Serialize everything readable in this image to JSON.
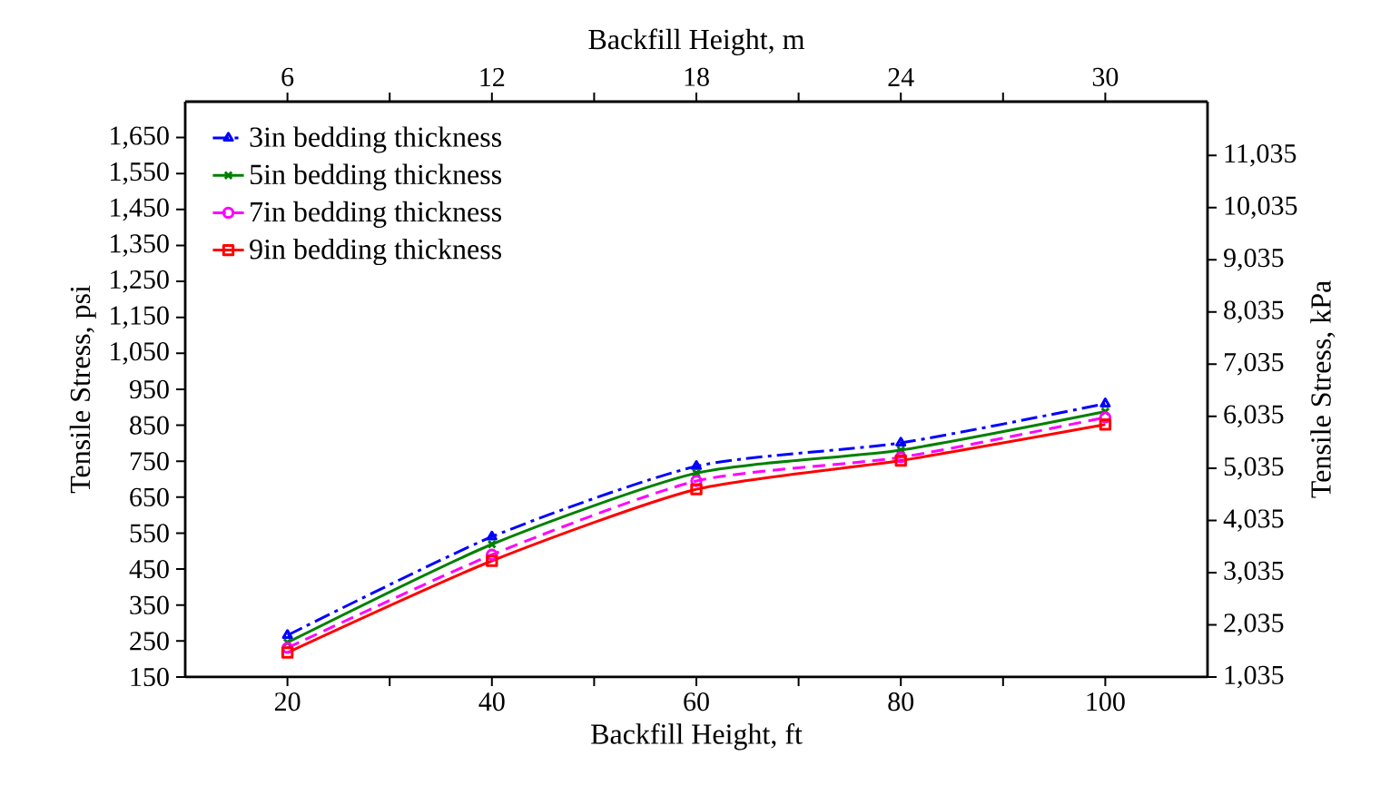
{
  "chart_data": {
    "type": "line",
    "xlabel": "Backfill Height, ft",
    "x2label": "Backfill Height, m",
    "ylabel": "Tensile Stress, psi",
    "y2label": "Tensile Stress, kPa",
    "x": [
      20,
      40,
      60,
      80,
      100
    ],
    "xlim": [
      10,
      110
    ],
    "xticks": [
      20,
      40,
      60,
      80,
      100
    ],
    "x2lim": [
      3,
      33
    ],
    "x2ticks": [
      6,
      12,
      18,
      24,
      30
    ],
    "ylim": [
      150,
      1750
    ],
    "yticks": [
      150,
      250,
      350,
      450,
      550,
      650,
      750,
      850,
      950,
      {
        "value": 1050,
        "label": "1,050"
      },
      {
        "value": 1150,
        "label": "1,150"
      },
      {
        "value": 1250,
        "label": "1,250"
      },
      {
        "value": 1350,
        "label": "1,350"
      },
      {
        "value": 1450,
        "label": "1,450"
      },
      {
        "value": 1550,
        "label": "1,550"
      },
      {
        "value": 1650,
        "label": "1,650"
      }
    ],
    "y2lim": [
      1035,
      12067
    ],
    "y2ticks": [
      {
        "value": 1035,
        "label": "1,035"
      },
      {
        "value": 2035,
        "label": "2,035"
      },
      {
        "value": 3035,
        "label": "3,035"
      },
      {
        "value": 4035,
        "label": "4,035"
      },
      {
        "value": 5035,
        "label": "5,035"
      },
      {
        "value": 6035,
        "label": "6,035"
      },
      {
        "value": 7035,
        "label": "7,035"
      },
      {
        "value": 8035,
        "label": "8,035"
      },
      {
        "value": 9035,
        "label": "9,035"
      },
      {
        "value": 10035,
        "label": "10,035"
      },
      {
        "value": 11035,
        "label": "11,035"
      }
    ],
    "legend": "top left",
    "series": [
      {
        "name": "3in bedding thickness",
        "color": "#0000ff",
        "marker": "triangle",
        "line_style": "dashdot",
        "values": [
          266,
          540,
          736,
          801,
          910
        ]
      },
      {
        "name": "5in bedding thickness",
        "color": "#008000",
        "marker": "cross",
        "line_style": "solid",
        "values": [
          246,
          519,
          717,
          781,
          888
        ]
      },
      {
        "name": "7in bedding thickness",
        "color": "#ff00ff",
        "marker": "circle",
        "line_style": "dashed",
        "values": [
          231,
          490,
          695,
          761,
          872
        ]
      },
      {
        "name": "9in bedding thickness",
        "color": "#ff0000",
        "marker": "square",
        "line_style": "solid",
        "values": [
          218,
          473,
          672,
          752,
          852
        ]
      }
    ]
  }
}
